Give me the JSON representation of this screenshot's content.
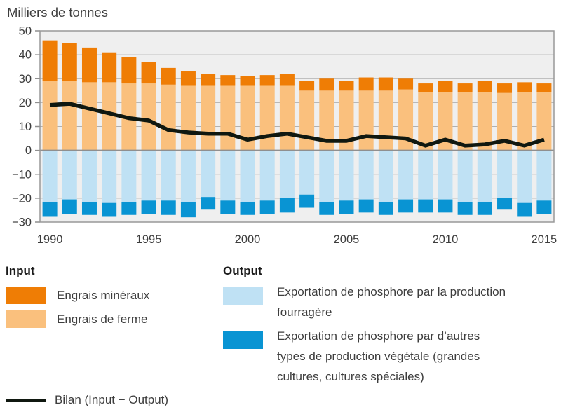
{
  "title": "Milliers de tonnes",
  "chart_data": {
    "type": "bar",
    "subtype": "stacked-bars-with-line",
    "title": "Milliers de tonnes",
    "ylabel": "Milliers de tonnes",
    "xlabel": "",
    "x": [
      1990,
      1991,
      1992,
      1993,
      1994,
      1995,
      1996,
      1997,
      1998,
      1999,
      2000,
      2001,
      2002,
      2003,
      2004,
      2005,
      2006,
      2007,
      2008,
      2009,
      2010,
      2011,
      2012,
      2013,
      2014,
      2015
    ],
    "x_tick_years": [
      1990,
      1995,
      2000,
      2005,
      2010,
      2015
    ],
    "x_tick_labels": [
      "1990",
      "1995",
      "2000",
      "2005",
      "2010",
      "2015"
    ],
    "ylim": [
      -30,
      50
    ],
    "y_ticks": [
      50,
      40,
      30,
      20,
      10,
      0,
      -10,
      -20,
      -30
    ],
    "y_tick_labels": [
      "50",
      "40",
      "30",
      "20",
      "10",
      "0",
      "−10",
      "−20",
      "−30"
    ],
    "grid": true,
    "legend_position": "bottom",
    "background": "#efefef",
    "gridline_color": "#b0b0b0",
    "axis_color": "#8f8f8f",
    "series": [
      {
        "id": "mineraux",
        "name": "Engrais minéraux",
        "type": "bar",
        "stack": "input",
        "color": "#ef7d05",
        "values": [
          17,
          16,
          14.5,
          12.5,
          11,
          9,
          7,
          6,
          5,
          4.5,
          4,
          4.5,
          5,
          4,
          5,
          4,
          5.5,
          5.5,
          4.5,
          3.5,
          4.5,
          3.5,
          4.5,
          4,
          4,
          3.5
        ]
      },
      {
        "id": "ferme",
        "name": "Engrais de ferme",
        "type": "bar",
        "stack": "input",
        "color": "#fac07d",
        "values": [
          29,
          29,
          28.5,
          28.5,
          28,
          28,
          27.5,
          27,
          27,
          27,
          27,
          27,
          27,
          25,
          25,
          25,
          25,
          25,
          25.5,
          24.5,
          24.5,
          24.5,
          24.5,
          24,
          24.5,
          24.5
        ]
      },
      {
        "id": "fourragere",
        "name": "Exportation de phosphore par la production fourragère",
        "type": "bar",
        "stack": "output",
        "color": "#bfe1f4",
        "values": [
          -21.5,
          -20.5,
          -21.5,
          -22,
          -21.5,
          -21,
          -21,
          -21.5,
          -19.5,
          -21,
          -21.5,
          -21,
          -20,
          -18.5,
          -21.5,
          -21,
          -20.5,
          -21.5,
          -20.5,
          -20.5,
          -20.5,
          -21.5,
          -21.5,
          -20,
          -22,
          -21
        ]
      },
      {
        "id": "autres",
        "name": "Exportation de phosphore par d’autres types de production végétale (grandes cultures, cultures spéciales)",
        "type": "bar",
        "stack": "output",
        "color": "#0994d3",
        "values": [
          -6,
          -6,
          -5.5,
          -5.5,
          -5.5,
          -5.5,
          -6,
          -6.5,
          -5,
          -5.5,
          -5.5,
          -5.5,
          -6,
          -5.5,
          -5.5,
          -5.5,
          -5.5,
          -5.5,
          -5.5,
          -5.5,
          -5.5,
          -5.5,
          -5.5,
          -4.5,
          -5.5,
          -5.5
        ]
      },
      {
        "id": "bilan",
        "name": "Bilan (Input − Output)",
        "type": "line",
        "color": "#101810",
        "values": [
          19,
          19.5,
          17.5,
          15.5,
          13.5,
          12.5,
          8.5,
          7.5,
          7,
          7,
          4.5,
          6,
          7,
          5.5,
          4,
          4,
          6,
          5.5,
          5,
          2,
          4.5,
          2,
          2.5,
          4,
          2,
          4.5
        ]
      }
    ]
  },
  "legend": {
    "input_header": "Input",
    "output_header": "Output",
    "mineraux_label": "Engrais minéraux",
    "ferme_label": "Engrais de ferme",
    "fourragere_lines": [
      "Exportation de phosphore par la production",
      "fourragère"
    ],
    "autres_lines": [
      "Exportation de phosphore par d’autres",
      "types de production végétale (grandes",
      "cultures, cultures spéciales)"
    ],
    "bilan_label": "Bilan (Input − Output)"
  }
}
